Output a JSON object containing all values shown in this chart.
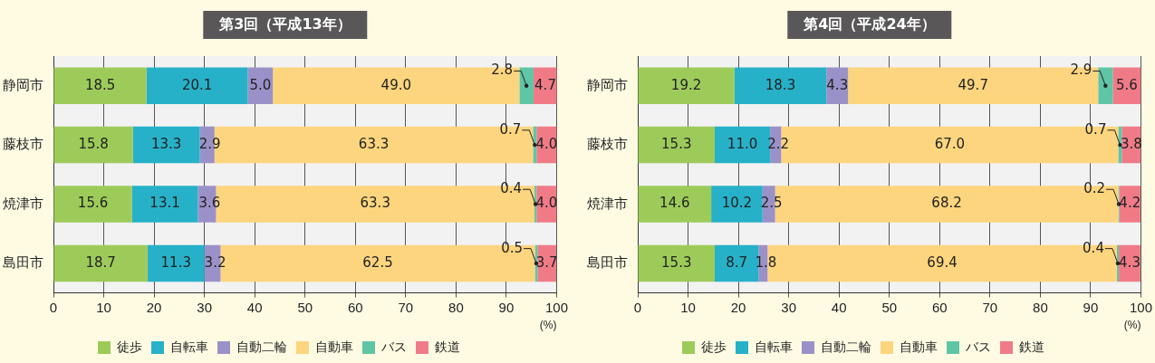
{
  "chart_data": [
    {
      "type": "bar",
      "title": "第3回（平成13年）",
      "orientation": "horizontal",
      "stacked": true,
      "categories": [
        "静岡市",
        "藤枝市",
        "焼津市",
        "島田市"
      ],
      "xlim": [
        0,
        100
      ],
      "xticks": [
        0,
        10,
        20,
        30,
        40,
        50,
        60,
        70,
        80,
        90,
        100
      ],
      "xlabel": "(%)",
      "grid": "x",
      "legend": "bottom",
      "series": [
        {
          "name": "徒歩",
          "color": "#9dcb5a",
          "values": [
            18.5,
            15.8,
            15.6,
            18.7
          ],
          "value_labels": [
            "18.5",
            "15.8",
            "15.6",
            "18.7"
          ]
        },
        {
          "name": "自転車",
          "color": "#27b1c9",
          "values": [
            20.1,
            13.3,
            13.1,
            11.3
          ],
          "value_labels": [
            "20.1",
            "13.3",
            "13.1",
            "11.3"
          ]
        },
        {
          "name": "自動二輪",
          "color": "#9b91c9",
          "values": [
            5.0,
            2.9,
            3.6,
            3.2
          ],
          "value_labels": [
            "5.0",
            "2.9",
            "3.6",
            "3.2"
          ]
        },
        {
          "name": "自動車",
          "color": "#fdd57e",
          "values": [
            49.0,
            63.3,
            63.3,
            62.5
          ],
          "value_labels": [
            "49.0",
            "63.3",
            "63.3",
            "62.5"
          ]
        },
        {
          "name": "バス",
          "color": "#5fc6a5",
          "values": [
            2.8,
            0.7,
            0.4,
            0.5
          ],
          "value_labels": [
            "2.8",
            "0.7",
            "0.4",
            "0.5"
          ]
        },
        {
          "name": "鉄道",
          "color": "#f07b87",
          "values": [
            4.7,
            4.0,
            4.0,
            3.7
          ],
          "value_labels": [
            "4.7",
            "4.0",
            "4.0",
            "3.7"
          ]
        }
      ]
    },
    {
      "type": "bar",
      "title": "第4回（平成24年）",
      "orientation": "horizontal",
      "stacked": true,
      "categories": [
        "静岡市",
        "藤枝市",
        "焼津市",
        "島田市"
      ],
      "xlim": [
        0,
        100
      ],
      "xticks": [
        0,
        10,
        20,
        30,
        40,
        50,
        60,
        70,
        80,
        90,
        100
      ],
      "xlabel": "(%)",
      "grid": "x",
      "legend": "bottom",
      "series": [
        {
          "name": "徒歩",
          "color": "#9dcb5a",
          "values": [
            19.2,
            15.3,
            14.6,
            15.3
          ],
          "value_labels": [
            "19.2",
            "15.3",
            "14.6",
            "15.3"
          ]
        },
        {
          "name": "自転車",
          "color": "#27b1c9",
          "values": [
            18.3,
            11.0,
            10.2,
            8.7
          ],
          "value_labels": [
            "18.3",
            "11.0",
            "10.2",
            "8.7"
          ]
        },
        {
          "name": "自動二輪",
          "color": "#9b91c9",
          "values": [
            4.3,
            2.2,
            2.5,
            1.8
          ],
          "value_labels": [
            "4.3",
            "2.2",
            "2.5",
            "1.8"
          ]
        },
        {
          "name": "自動車",
          "color": "#fdd57e",
          "values": [
            49.7,
            67.0,
            68.2,
            69.4
          ],
          "value_labels": [
            "49.7",
            "67.0",
            "68.2",
            "69.4"
          ]
        },
        {
          "name": "バス",
          "color": "#5fc6a5",
          "values": [
            2.9,
            0.7,
            0.2,
            0.4
          ],
          "value_labels": [
            "2.9",
            "0.7",
            "0.2",
            "0.4"
          ]
        },
        {
          "name": "鉄道",
          "color": "#f07b87",
          "values": [
            5.6,
            3.8,
            4.2,
            4.3
          ],
          "value_labels": [
            "5.6",
            "3.8",
            "4.2",
            "4.3"
          ]
        }
      ]
    }
  ]
}
